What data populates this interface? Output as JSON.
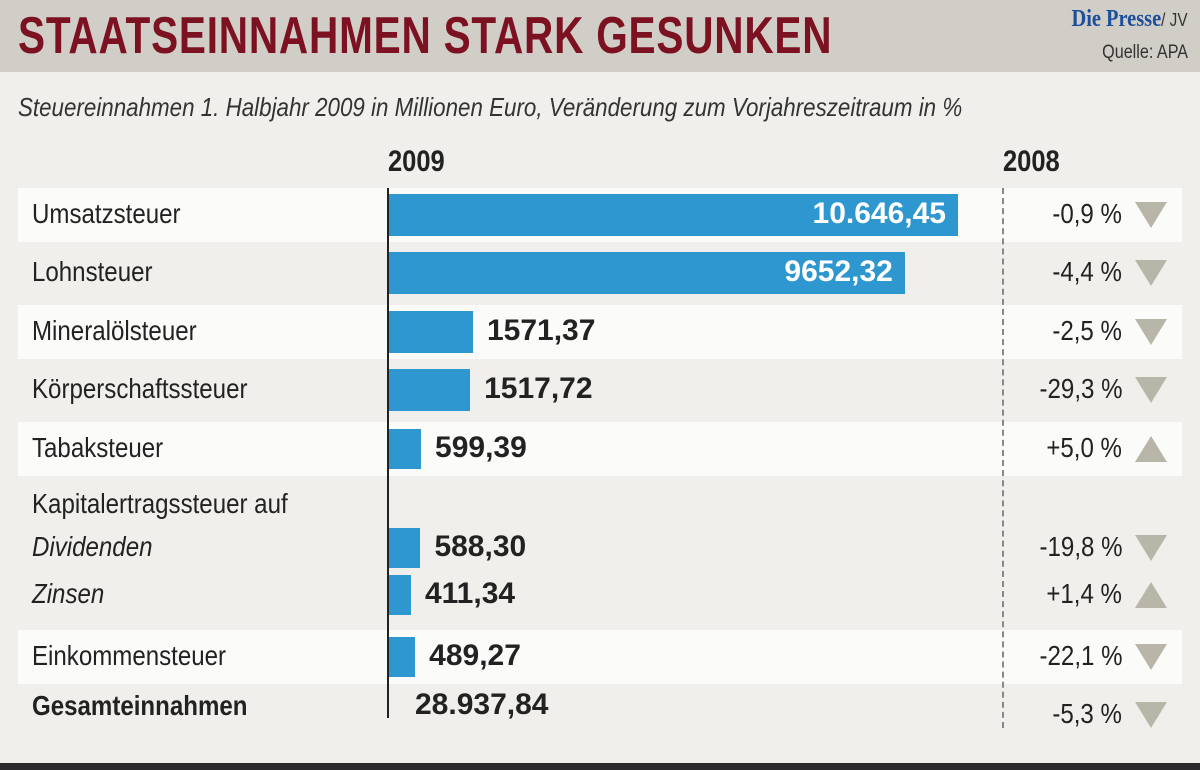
{
  "header": {
    "title": "STAATSEINNAHMEN STARK GESUNKEN",
    "brand": "Die Presse",
    "brand_suffix": "/ JV",
    "source": "Quelle: APA"
  },
  "chart_data": {
    "type": "bar",
    "title": "STAATSEINNAHMEN STARK GESUNKEN",
    "subtitle": "Steuereinnahmen 1. Halbjahr 2009 in Millionen Euro, Veränderung zum Vorjahreszeitraum in %",
    "col_2009": "2009",
    "col_2008": "2008",
    "unit": "Millionen Euro",
    "rows": [
      {
        "label": "Umsatzsteuer",
        "value": 10646.45,
        "value_label": "10.646,45",
        "change": "-0,9 %",
        "dir": "down"
      },
      {
        "label": "Lohnsteuer",
        "value": 9652.32,
        "value_label": "9652,32",
        "change": "-4,4 %",
        "dir": "down"
      },
      {
        "label": "Mineralölsteuer",
        "value": 1571.37,
        "value_label": "1571,37",
        "change": "-2,5 %",
        "dir": "down"
      },
      {
        "label": "Körperschaftssteuer",
        "value": 1517.72,
        "value_label": "1517,72",
        "change": "-29,3 %",
        "dir": "down"
      },
      {
        "label": "Tabaksteuer",
        "value": 599.39,
        "value_label": "599,39",
        "change": "+5,0 %",
        "dir": "up"
      },
      {
        "label": "Dividenden",
        "group": "Kapitalertragssteuer auf",
        "value": 588.3,
        "value_label": "588,30",
        "change": "-19,8 %",
        "dir": "down"
      },
      {
        "label": "Zinsen",
        "value": 411.34,
        "value_label": "411,34",
        "change": "+1,4 %",
        "dir": "up"
      },
      {
        "label": "Einkommensteuer",
        "value": 489.27,
        "value_label": "489,27",
        "change": "-22,1 %",
        "dir": "down"
      }
    ],
    "total": {
      "label": "Gesamteinnahmen",
      "value": 28937.84,
      "value_label": "28.937,84",
      "change": "-5,3 %",
      "dir": "down"
    }
  }
}
